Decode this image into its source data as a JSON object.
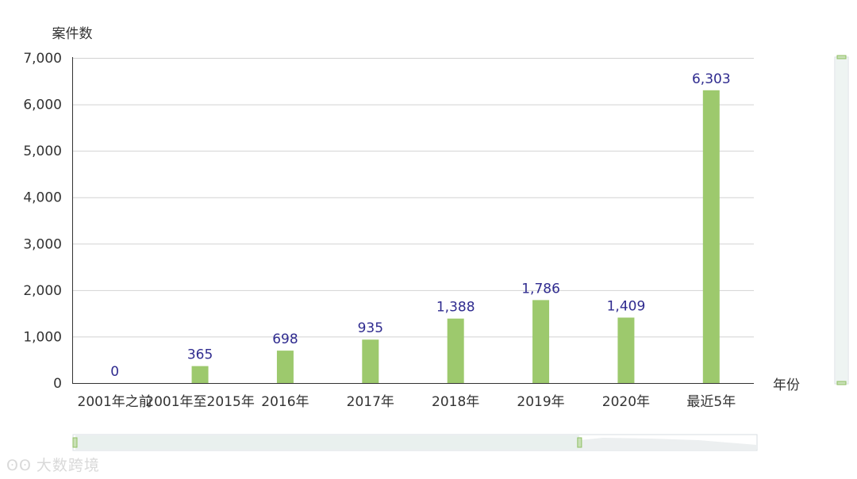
{
  "chart_data": {
    "type": "bar",
    "title": "",
    "ylabel": "案件数",
    "xlabel": "年份",
    "ylim": [
      0,
      7000
    ],
    "yticks": [
      "0",
      "1,000",
      "2,000",
      "3,000",
      "4,000",
      "5,000",
      "6,000",
      "7,000"
    ],
    "categories": [
      "2001年之前",
      "2001年至2015年",
      "2016年",
      "2017年",
      "2018年",
      "2019年",
      "2020年",
      "最近5年"
    ],
    "values": [
      0,
      365,
      698,
      935,
      1388,
      1786,
      1409,
      6303
    ],
    "data_labels": [
      "0",
      "365",
      "698",
      "935",
      "1,388",
      "1,786",
      "1,409",
      "6,303"
    ],
    "bar_color": "#9dc96d",
    "label_color": "#2f2b8f",
    "grid": true,
    "legend": "none"
  },
  "x_zoom": {
    "start": 0,
    "end": 0.74
  },
  "watermark": {
    "text": "大数跨境"
  }
}
